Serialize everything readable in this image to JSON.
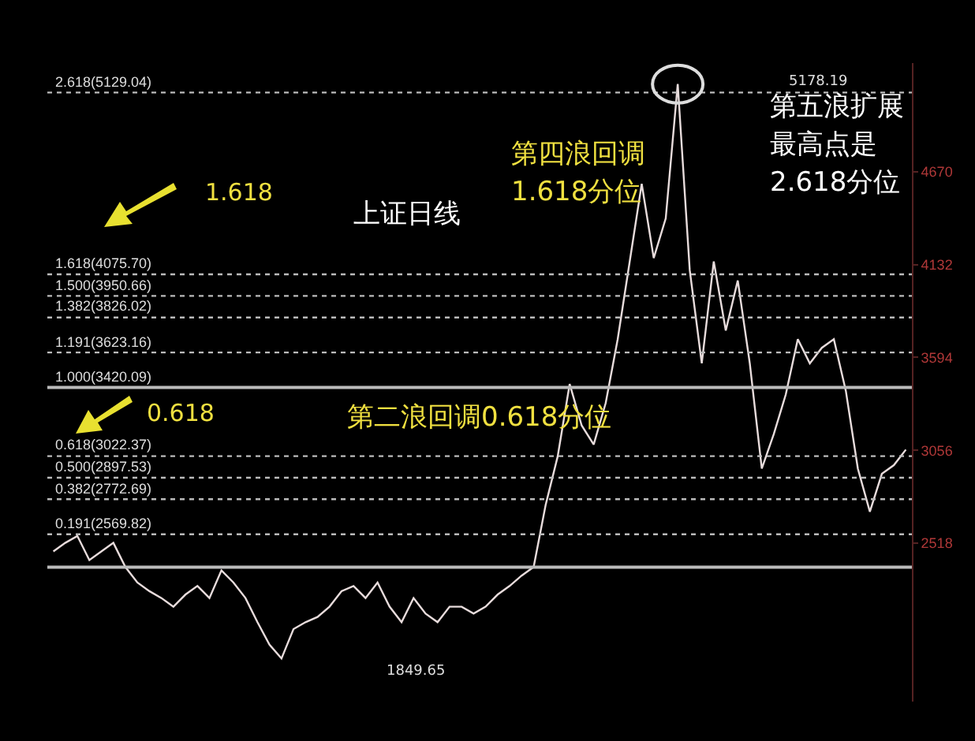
{
  "chart_data": {
    "type": "line",
    "categories": [
      null,
      null,
      null,
      null,
      null,
      null,
      null,
      null,
      null,
      null,
      null,
      null,
      null,
      null,
      null,
      null,
      null,
      null,
      null,
      null,
      null,
      null,
      null,
      null,
      null,
      null,
      null,
      null,
      null,
      null,
      null,
      null,
      null,
      null,
      null,
      null,
      null,
      null,
      null,
      null,
      null,
      null,
      null,
      null,
      null,
      null,
      null,
      null,
      null,
      null,
      null,
      null,
      null,
      null,
      null,
      null,
      null,
      null,
      null,
      null,
      null,
      null,
      null,
      null,
      null,
      null,
      null,
      null,
      null,
      null,
      null,
      null
    ],
    "series": [
      {
        "color": "#e8dcdc",
        "values": [
          2470,
          2520,
          2560,
          2420,
          2470,
          2520,
          2380,
          2290,
          2240,
          2200,
          2150,
          2220,
          2270,
          2200,
          2360,
          2290,
          2200,
          2060,
          1930,
          1849.65,
          2020,
          2060,
          2090,
          2150,
          2240,
          2270,
          2200,
          2290,
          2150,
          2060,
          2200,
          2110,
          2060,
          2150,
          2150,
          2110,
          2150,
          2220,
          2270,
          2330,
          2380,
          2740,
          3020,
          3440,
          3200,
          3090,
          3330,
          3700,
          4150,
          4600,
          4170,
          4400,
          5178.19,
          4100,
          3560,
          4150,
          3750,
          4040,
          3560,
          2950,
          3150,
          3380,
          3700,
          3560,
          3650,
          3700,
          3400,
          2950,
          2700,
          2920,
          2970,
          3060
        ]
      }
    ],
    "ylim": [
      1600,
      5300
    ],
    "yticks": [
      2518,
      3056,
      3594,
      4132,
      4670
    ],
    "grid": false,
    "marker": "none",
    "line_style": "solid",
    "tick_labels": "y",
    "ref_lines": [
      {
        "axis": "y",
        "value": 5129.04,
        "label": "2.618(5129.04)",
        "line_style": "dotted",
        "color": "#bbbbbb"
      },
      {
        "axis": "y",
        "value": 4075.7,
        "label": "1.618(4075.70)",
        "line_style": "dotted",
        "color": "#bbbbbb"
      },
      {
        "axis": "y",
        "value": 3950.66,
        "label": "1.500(3950.66)",
        "line_style": "dotted",
        "color": "#bbbbbb"
      },
      {
        "axis": "y",
        "value": 3826.02,
        "label": "1.382(3826.02)",
        "line_style": "dotted",
        "color": "#bbbbbb"
      },
      {
        "axis": "y",
        "value": 3623.16,
        "label": "1.191(3623.16)",
        "line_style": "dotted",
        "color": "#bbbbbb"
      },
      {
        "axis": "y",
        "value": 3420.09,
        "label": "1.000(3420.09)",
        "line_style": "solid",
        "color": "#bbbbbb"
      },
      {
        "axis": "y",
        "value": 3022.37,
        "label": "0.618(3022.37)",
        "line_style": "dotted",
        "color": "#bbbbbb"
      },
      {
        "axis": "y",
        "value": 2897.53,
        "label": "0.500(2897.53)",
        "line_style": "dotted",
        "color": "#bbbbbb"
      },
      {
        "axis": "y",
        "value": 2772.69,
        "label": "0.382(2772.69)",
        "line_style": "dotted",
        "color": "#bbbbbb"
      },
      {
        "axis": "y",
        "value": 2569.82,
        "label": "0.191(2569.82)",
        "line_style": "dotted",
        "color": "#bbbbbb"
      },
      {
        "axis": "y",
        "value": 2379,
        "line_style": "solid",
        "color": "#bbbbbb"
      }
    ],
    "annotations": [
      "1.618",
      "0.618",
      "上证日线",
      "第二浪回调0.618分位",
      "第四浪回调",
      "1.618分位",
      "第五浪扩展",
      "最高点是",
      "2.618分位",
      "1849.65",
      "5178.19"
    ]
  }
}
